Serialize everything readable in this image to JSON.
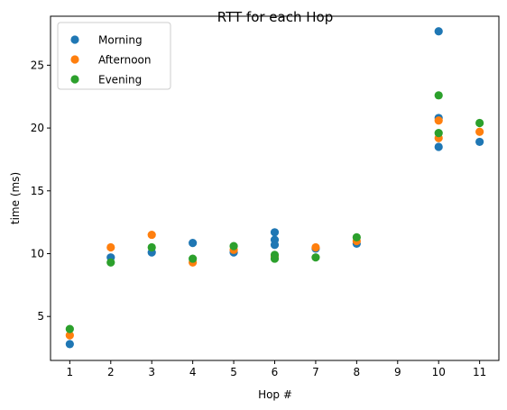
{
  "chart_data": {
    "type": "scatter",
    "title": "RTT for each Hop",
    "xlabel": "Hop #",
    "ylabel": "time (ms)",
    "xticks": [
      1,
      2,
      3,
      4,
      5,
      6,
      7,
      8,
      9,
      10,
      11
    ],
    "yticks": [
      5,
      10,
      15,
      20,
      25
    ],
    "xlim": [
      0.53,
      11.47
    ],
    "ylim": [
      1.5,
      28.9
    ],
    "grid": false,
    "legend_position": "top-left",
    "series": [
      {
        "name": "Morning",
        "color": "#1f77b4",
        "points": [
          [
            1,
            2.8
          ],
          [
            2,
            9.7
          ],
          [
            3,
            10.1
          ],
          [
            4,
            10.85
          ],
          [
            5,
            10.1
          ],
          [
            6,
            11.7
          ],
          [
            6,
            11.1
          ],
          [
            6,
            10.7
          ],
          [
            7,
            10.4
          ],
          [
            8,
            10.8
          ],
          [
            10,
            27.7
          ],
          [
            10,
            20.8
          ],
          [
            10,
            18.5
          ],
          [
            11,
            18.9
          ]
        ]
      },
      {
        "name": "Afternoon",
        "color": "#ff7f0e",
        "points": [
          [
            1,
            3.5
          ],
          [
            2,
            10.5
          ],
          [
            3,
            11.5
          ],
          [
            4,
            9.3
          ],
          [
            5,
            10.3
          ],
          [
            6,
            9.8
          ],
          [
            7,
            10.5
          ],
          [
            8,
            11.0
          ],
          [
            10,
            20.6
          ],
          [
            10,
            19.2
          ],
          [
            11,
            19.7
          ]
        ]
      },
      {
        "name": "Evening",
        "color": "#2ca02c",
        "points": [
          [
            1,
            4.0
          ],
          [
            2,
            9.3
          ],
          [
            3,
            10.5
          ],
          [
            4,
            9.6
          ],
          [
            5,
            10.6
          ],
          [
            6,
            9.6
          ],
          [
            6,
            9.9
          ],
          [
            7,
            9.7
          ],
          [
            8,
            11.3
          ],
          [
            10,
            22.6
          ],
          [
            10,
            19.6
          ],
          [
            11,
            20.4
          ]
        ]
      }
    ]
  }
}
